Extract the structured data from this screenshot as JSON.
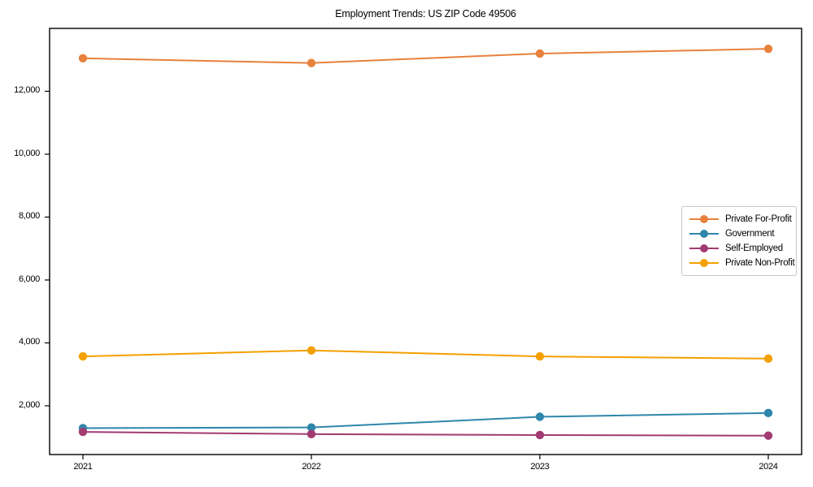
{
  "chart_data": {
    "type": "line",
    "title": "Employment Trends: US ZIP Code 49506",
    "categories": [
      "2021",
      "2022",
      "2023",
      "2024"
    ],
    "series": [
      {
        "name": "Private For-Profit",
        "color": "#E8813C",
        "values": [
          13050,
          12900,
          13200,
          13350
        ]
      },
      {
        "name": "Government",
        "color": "#2E86AB",
        "values": [
          1290,
          1310,
          1650,
          1770
        ]
      },
      {
        "name": "Self-Employed",
        "color": "#A23B72",
        "values": [
          1170,
          1100,
          1070,
          1050
        ]
      },
      {
        "name": "Private Non-Profit",
        "color": "#F4A000",
        "values": [
          3570,
          3760,
          3570,
          3500
        ]
      }
    ],
    "xlabel": "",
    "ylabel": "",
    "ylim": [
      450,
      14000
    ],
    "yticks": [
      2000,
      4000,
      6000,
      8000,
      10000,
      12000
    ],
    "ytick_labels": [
      "2,000",
      "4,000",
      "6,000",
      "8,000",
      "10,000",
      "12,000"
    ],
    "grid": false,
    "legend_position": "center-right",
    "marker": "circle",
    "axis_color": "#000000",
    "background": "#ffffff"
  }
}
